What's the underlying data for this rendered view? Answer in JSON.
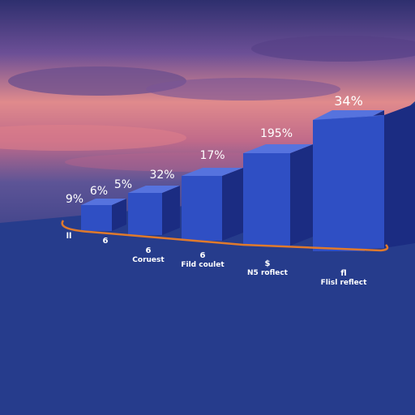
{
  "colors": {
    "bar_front": "#2f4fc4",
    "bar_side": "#1b2c82",
    "bar_top": "#5673de",
    "floor": "#263c8c",
    "baseline": "#e07a2c",
    "value_label": "#ffffff"
  },
  "chart_data": {
    "type": "bar",
    "style": "3d",
    "categories": [
      "",
      "",
      "",
      "",
      "",
      ""
    ],
    "values": [
      9,
      6,
      5,
      32,
      17,
      34
    ],
    "value_labels": [
      "9%",
      "6%",
      "5%",
      "32%",
      "17%",
      "34%"
    ],
    "bar_labels": [
      "",
      "",
      "",
      "",
      "195%",
      ""
    ],
    "title": "",
    "xlabel": "",
    "ylabel": "",
    "grid": false,
    "legend": "none"
  },
  "columns": [
    {
      "icon": "ll",
      "title": "",
      "lines": []
    },
    {
      "icon": "6",
      "title": "",
      "lines": []
    },
    {
      "icon": "6",
      "title": "Coruest",
      "lines": []
    },
    {
      "icon": "6",
      "title": "Fild coulet",
      "lines": []
    },
    {
      "icon": "$",
      "title": "N5 roflect",
      "lines": []
    },
    {
      "icon": "fl",
      "title": "Flisl reflect",
      "lines": []
    }
  ]
}
